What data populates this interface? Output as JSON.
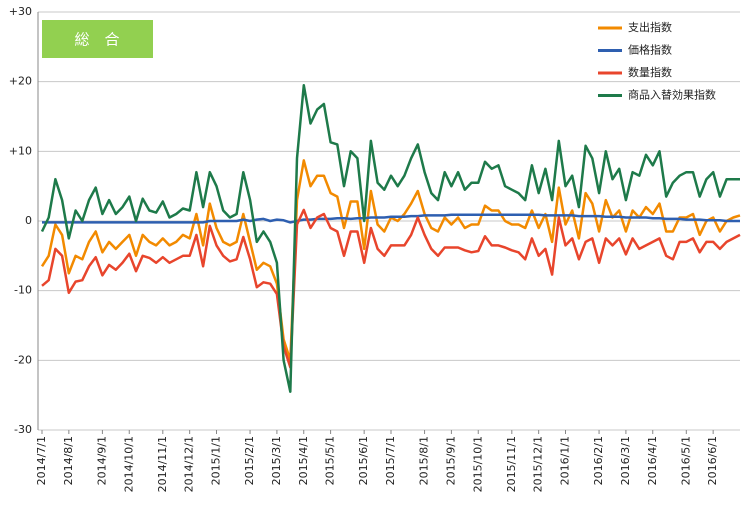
{
  "chart_data": {
    "type": "line",
    "annotation": "総　合",
    "categories": [
      "2014/7/1",
      null,
      null,
      null,
      "2014/8/1",
      null,
      null,
      null,
      null,
      "2014/9/1",
      null,
      null,
      null,
      "2014/10/1",
      null,
      null,
      null,
      null,
      "2014/11/1",
      null,
      null,
      null,
      "2014/12/1",
      null,
      null,
      null,
      "2015/1/1",
      null,
      null,
      null,
      null,
      "2015/2/1",
      null,
      null,
      null,
      "2015/3/1",
      null,
      null,
      null,
      "2015/4/1",
      null,
      null,
      null,
      "2015/5/1",
      null,
      null,
      null,
      null,
      "2015/6/1",
      null,
      null,
      null,
      "2015/7/1",
      null,
      null,
      null,
      null,
      "2015/8/1",
      null,
      null,
      null,
      "2015/9/1",
      null,
      null,
      null,
      "2015/10/1",
      null,
      null,
      null,
      null,
      "2015/11/1",
      null,
      null,
      null,
      "2015/12/1",
      null,
      null,
      null,
      "2016/1/1",
      null,
      null,
      null,
      null,
      "2016/2/1",
      null,
      null,
      null,
      "2016/3/1",
      null,
      null,
      null,
      "2016/4/1",
      null,
      null,
      null,
      null,
      "2016/5/1",
      null,
      null,
      null,
      "2016/6/1",
      null,
      null,
      null,
      null
    ],
    "series": [
      {
        "name": "支出指数",
        "color": "#f28a00",
        "values": [
          -6.5,
          -5,
          -0.5,
          -2,
          -7.5,
          -5,
          -5.5,
          -3,
          -1.5,
          -4.5,
          -3,
          -4,
          -3,
          -2,
          -5,
          -2,
          -3,
          -3.5,
          -2.5,
          -3.5,
          -3,
          -2,
          -2.5,
          1,
          -3.5,
          2.5,
          -1,
          -3,
          -3.5,
          -3,
          1,
          -3,
          -7,
          -6,
          -6.5,
          -9,
          -17,
          -20,
          3,
          8.7,
          5,
          6.5,
          6.5,
          4,
          3.5,
          -1,
          2.8,
          2.8,
          -4,
          4.3,
          -0.5,
          -1.5,
          0.5,
          0,
          1,
          2.5,
          4.3,
          1,
          -1,
          -1.5,
          0.5,
          -0.5,
          0.5,
          -1,
          -0.5,
          -0.5,
          2.2,
          1.5,
          1.5,
          0,
          -0.5,
          -0.5,
          -1,
          1.5,
          -1,
          1,
          -3,
          4.8,
          -0.5,
          1.5,
          -2.5,
          4,
          2.5,
          -1.5,
          3,
          0.5,
          1.5,
          -1.5,
          1.5,
          0.5,
          2,
          1,
          2.5,
          -1.5,
          -1.5,
          0.5,
          0.5,
          1,
          -2,
          0,
          0.5,
          -1.5,
          0,
          0.5,
          0.8
        ]
      },
      {
        "name": "価格指数",
        "color": "#2e5fb0",
        "values": [
          -0.2,
          -0.2,
          -0.2,
          -0.2,
          -0.2,
          -0.2,
          -0.2,
          -0.2,
          -0.2,
          -0.2,
          -0.2,
          -0.2,
          -0.2,
          -0.2,
          -0.2,
          -0.2,
          -0.2,
          -0.2,
          -0.2,
          -0.2,
          -0.2,
          -0.2,
          -0.2,
          -0.2,
          -0.2,
          0,
          0,
          0,
          0,
          0,
          0.2,
          0,
          0.2,
          0.3,
          0,
          0.2,
          0.1,
          -0.2,
          0,
          0.2,
          0.2,
          0.3,
          0.3,
          0.3,
          0.4,
          0.4,
          0.3,
          0.4,
          0.4,
          0.5,
          0.5,
          0.5,
          0.6,
          0.6,
          0.6,
          0.7,
          0.7,
          0.8,
          0.8,
          0.8,
          0.8,
          0.9,
          0.9,
          0.9,
          0.9,
          0.9,
          0.9,
          0.9,
          0.9,
          0.9,
          0.9,
          0.9,
          0.9,
          0.9,
          0.9,
          0.8,
          0.8,
          0.8,
          0.8,
          0.8,
          0.7,
          0.7,
          0.7,
          0.7,
          0.6,
          0.6,
          0.6,
          0.5,
          0.5,
          0.5,
          0.5,
          0.4,
          0.4,
          0.3,
          0.3,
          0.3,
          0.2,
          0.2,
          0.2,
          0.1,
          0.1,
          0.1,
          0,
          0,
          0
        ]
      },
      {
        "name": "数量指数",
        "color": "#e8452c",
        "values": [
          -9.3,
          -8.5,
          -4,
          -5,
          -10.3,
          -8.7,
          -8.5,
          -6.5,
          -5.2,
          -7.8,
          -6.3,
          -7,
          -6,
          -4.7,
          -7.2,
          -5,
          -5.3,
          -6,
          -5.2,
          -6,
          -5.5,
          -5,
          -5,
          -2,
          -6.5,
          -0.7,
          -3.5,
          -5,
          -5.8,
          -5.5,
          -2.3,
          -5.5,
          -9.5,
          -8.8,
          -9,
          -10.5,
          -18,
          -21,
          -0.5,
          1.6,
          -1,
          0.5,
          1,
          -1,
          -1.5,
          -5,
          -1.5,
          -1.5,
          -6,
          -1,
          -4,
          -5,
          -3.5,
          -3.5,
          -3.5,
          -2,
          0.5,
          -2,
          -4,
          -5,
          -3.8,
          -3.8,
          -3.8,
          -4.2,
          -4.5,
          -4.3,
          -2.2,
          -3.5,
          -3.5,
          -3.8,
          -4.2,
          -4.5,
          -5.5,
          -2.5,
          -5,
          -4,
          -7.7,
          0.5,
          -3.5,
          -2.5,
          -5.5,
          -3,
          -2.5,
          -6,
          -2.5,
          -3.5,
          -2.5,
          -4.8,
          -2.5,
          -4,
          -3.5,
          -3,
          -2.5,
          -5,
          -5.5,
          -3,
          -3,
          -2.5,
          -4.5,
          -3,
          -3,
          -4,
          -3,
          -2.5,
          -2
        ]
      },
      {
        "name": "商品入替効果指数",
        "color": "#1e7a4a",
        "values": [
          -1.5,
          0.5,
          6,
          3,
          -2.5,
          1.5,
          0,
          3,
          4.8,
          1,
          3,
          1,
          2,
          3.5,
          0,
          3.2,
          1.5,
          1.2,
          2.8,
          0.5,
          1,
          1.8,
          1.5,
          7,
          2,
          7,
          5,
          1.5,
          0.5,
          1,
          7,
          3,
          -3,
          -1.5,
          -3,
          -6,
          -20,
          -24.5,
          9,
          19.5,
          14,
          16,
          16.8,
          11.3,
          11,
          5,
          10,
          9,
          0,
          11.5,
          5.5,
          4.5,
          6.5,
          5,
          6.5,
          9,
          11,
          7,
          4,
          3,
          7,
          5,
          7,
          4.5,
          5.5,
          5.5,
          8.5,
          7.5,
          8,
          5,
          4.5,
          4,
          3,
          8,
          4,
          7.5,
          3,
          11.5,
          5,
          6.5,
          2,
          10.8,
          9,
          4,
          10,
          6,
          7.5,
          3,
          7,
          6.5,
          9.5,
          8,
          10,
          3.5,
          5.5,
          6.5,
          7,
          7,
          3.5,
          6,
          7,
          3.5,
          6,
          6,
          6
        ]
      }
    ],
    "ylim": [
      -30,
      30
    ],
    "yticks": [
      {
        "value": 30,
        "label": "+30"
      },
      {
        "value": 20,
        "label": "+20"
      },
      {
        "value": 10,
        "label": "+10"
      },
      0,
      -10,
      -20,
      -30
    ],
    "grid": true,
    "legend": "top-right"
  }
}
